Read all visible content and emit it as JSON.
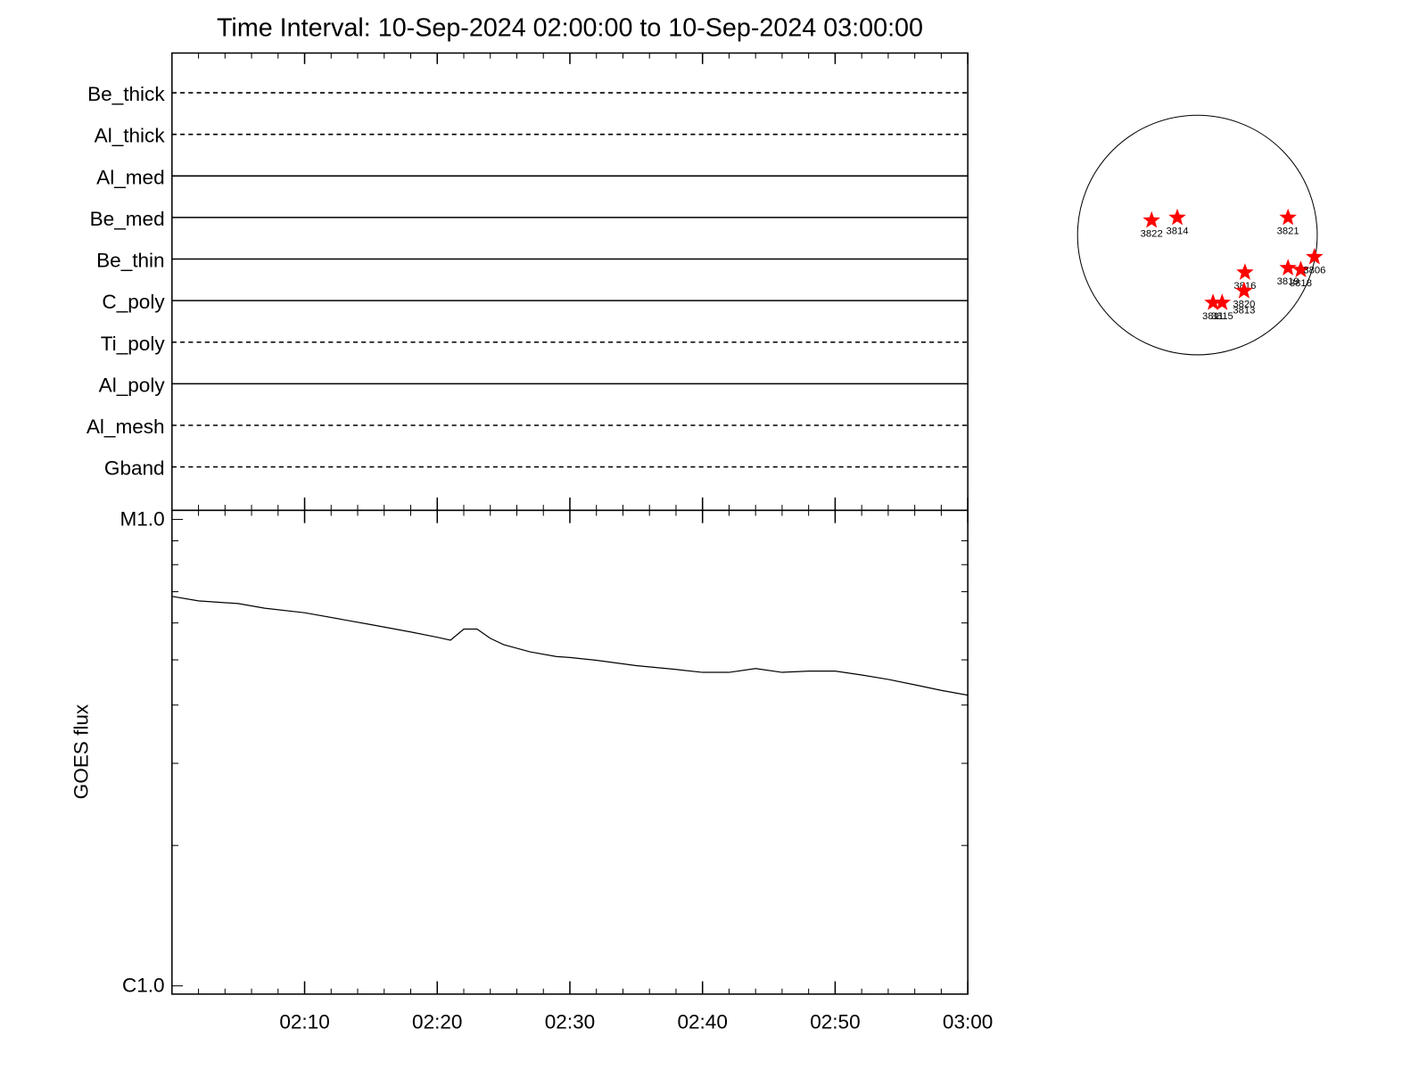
{
  "chart_data": [
    {
      "type": "timeline",
      "title": "Time Interval: 10-Sep-2024 02:00:00 to 10-Sep-2024 03:00:00",
      "categories": [
        "Be_thick",
        "Al_thick",
        "Al_med",
        "Be_med",
        "Be_thin",
        "C_poly",
        "Ti_poly",
        "Al_poly",
        "Al_mesh",
        "Gband"
      ],
      "styles": [
        "dashed",
        "dashed",
        "solid",
        "solid",
        "solid",
        "solid",
        "dashed",
        "solid",
        "dashed",
        "dashed"
      ],
      "xlim": [
        "02:00",
        "03:00"
      ],
      "xticks": [
        "02:10",
        "02:20",
        "02:30",
        "02:40",
        "02:50",
        "03:00"
      ]
    },
    {
      "type": "line",
      "ylabel": "GOES flux",
      "log": true,
      "color": "#000000",
      "xlim": [
        "02:00",
        "03:00"
      ],
      "xticks": [
        "02:10",
        "02:20",
        "02:30",
        "02:40",
        "02:50",
        "03:00"
      ],
      "ylim": [
        1e-06,
        1e-05
      ],
      "yticks": [
        {
          "value": 1e-06,
          "label": "C1.0"
        },
        {
          "value": 1e-05,
          "label": "M1.0"
        }
      ],
      "x": [
        "02:00",
        "02:02",
        "02:05",
        "02:07",
        "02:10",
        "02:13",
        "02:15",
        "02:18",
        "02:20",
        "02:21",
        "02:22",
        "02:23",
        "02:24",
        "02:25",
        "02:27",
        "02:29",
        "02:30",
        "02:32",
        "02:35",
        "02:38",
        "02:40",
        "02:42",
        "02:44",
        "02:46",
        "02:48",
        "02:50",
        "02:52",
        "02:54",
        "02:56",
        "02:58",
        "03:00"
      ],
      "values": [
        6.84e-06,
        6.69e-06,
        6.6e-06,
        6.45e-06,
        6.31e-06,
        6.09e-06,
        5.95e-06,
        5.74e-06,
        5.59e-06,
        5.51e-06,
        5.82e-06,
        5.82e-06,
        5.56e-06,
        5.39e-06,
        5.2e-06,
        5.08e-06,
        5.06e-06,
        4.99e-06,
        4.86e-06,
        4.77e-06,
        4.7e-06,
        4.7e-06,
        4.79e-06,
        4.7e-06,
        4.73e-06,
        4.73e-06,
        4.64e-06,
        4.54e-06,
        4.42e-06,
        4.3e-06,
        4.2e-06
      ]
    },
    {
      "type": "disk",
      "color": "#ff0000",
      "labels": [
        "3822",
        "3814",
        "3821",
        "3816",
        "3820",
        "3813",
        "3811",
        "3815",
        "3819",
        "3818",
        "3806"
      ],
      "x": [
        -367,
        -161,
        726,
        381,
        374,
        374,
        125,
        198,
        726,
        828,
        938
      ],
      "y": [
        117,
        139,
        139,
        -300,
        -447,
        -447,
        -542,
        -542,
        -264,
        -279,
        -176
      ]
    }
  ]
}
